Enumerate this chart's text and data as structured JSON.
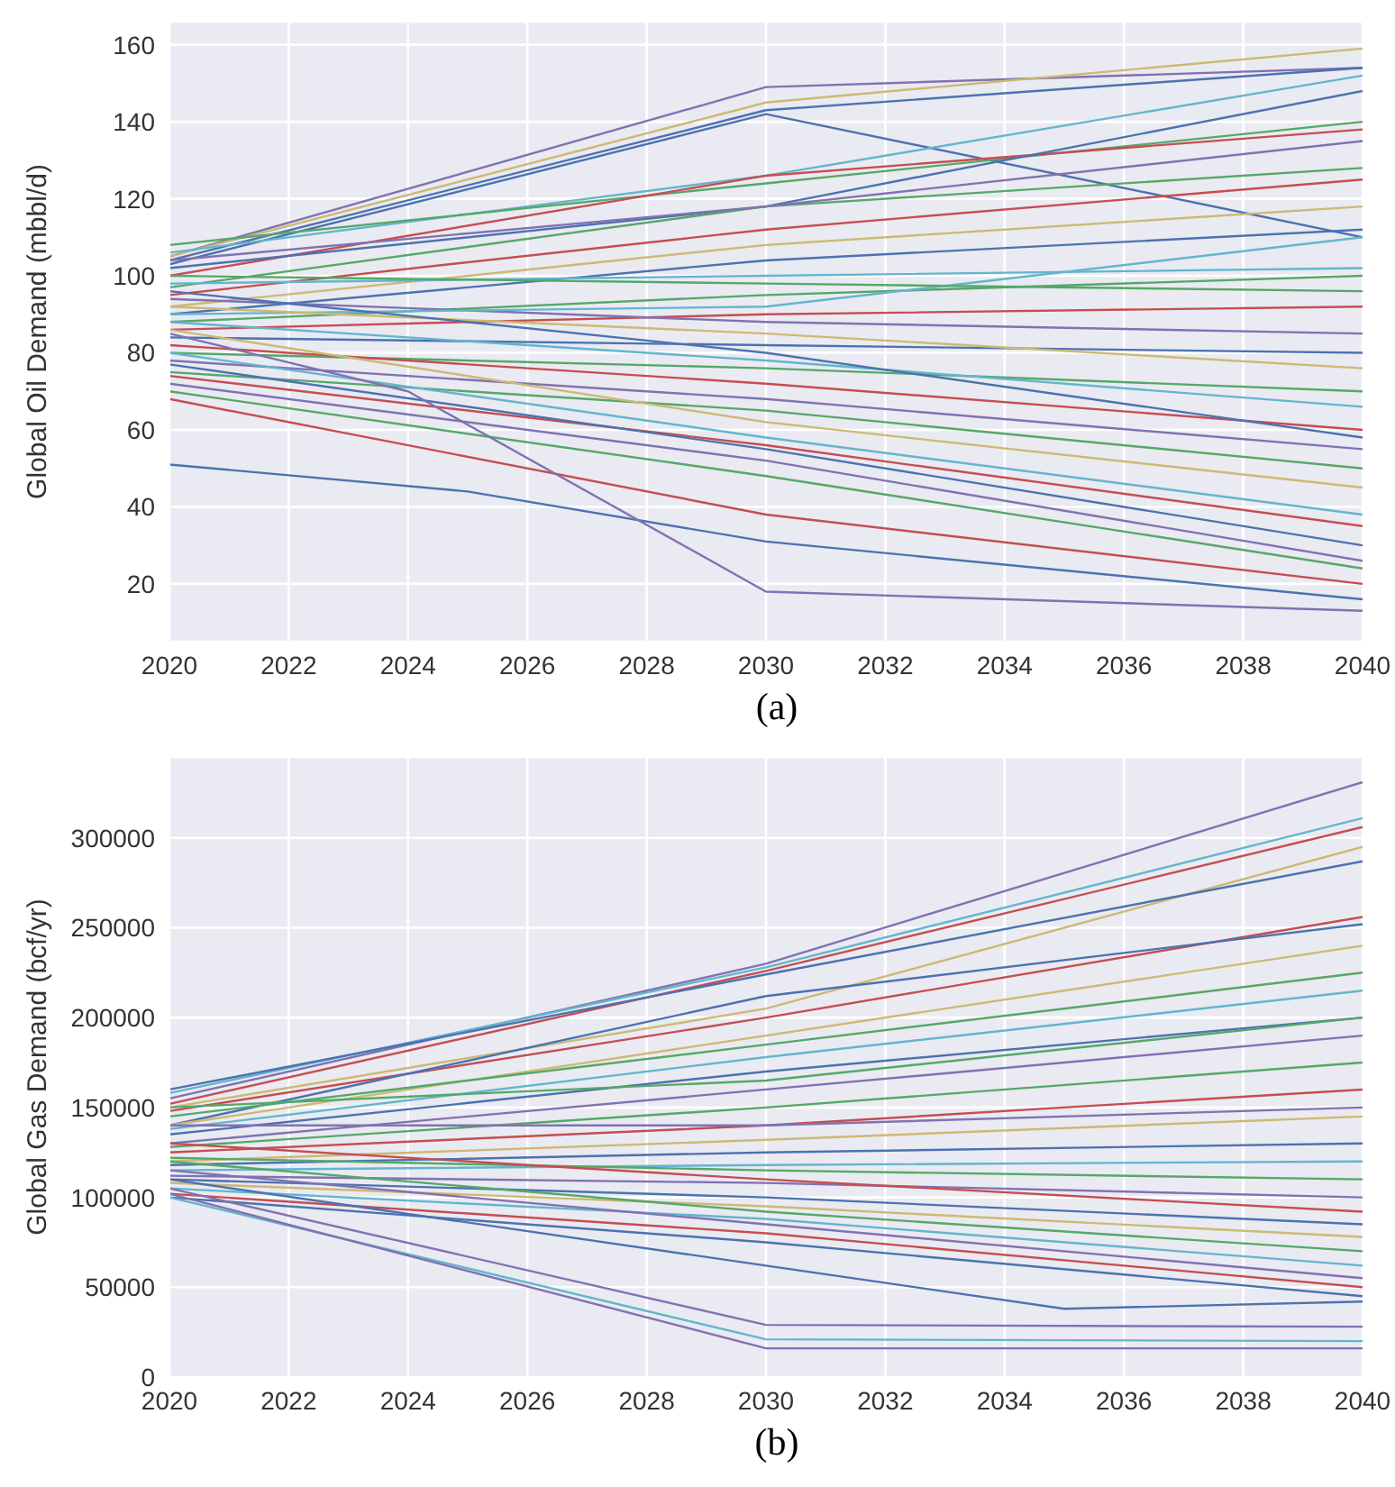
{
  "chart_data": [
    {
      "type": "line",
      "ylabel": "Global Oil Demand (mbbl/d)",
      "annotations": [
        "(a)"
      ],
      "xlim": [
        2020,
        2040
      ],
      "xticks": [
        2020,
        2022,
        2024,
        2026,
        2028,
        2030,
        2032,
        2034,
        2036,
        2038,
        2040
      ],
      "ylim": [
        5,
        166
      ],
      "yticks": [
        20,
        40,
        60,
        80,
        100,
        120,
        140,
        160
      ],
      "grid": true,
      "series": [
        {
          "color": "#8172b2",
          "x": [
            2020,
            2030,
            2040
          ],
          "values": [
            105,
            149,
            154
          ]
        },
        {
          "color": "#ccb974",
          "x": [
            2020,
            2030,
            2040
          ],
          "values": [
            105,
            145,
            159
          ]
        },
        {
          "color": "#4c72b0",
          "x": [
            2020,
            2030,
            2040
          ],
          "values": [
            104,
            143,
            154
          ]
        },
        {
          "color": "#4c72b0",
          "x": [
            2020,
            2030,
            2040
          ],
          "values": [
            103,
            142,
            110
          ]
        },
        {
          "color": "#64b5cd",
          "x": [
            2020,
            2030,
            2040
          ],
          "values": [
            106,
            126,
            152
          ]
        },
        {
          "color": "#55a868",
          "x": [
            2020,
            2030,
            2040
          ],
          "values": [
            108,
            124,
            140
          ]
        },
        {
          "color": "#c44e52",
          "x": [
            2020,
            2030,
            2040
          ],
          "values": [
            100,
            126,
            138
          ]
        },
        {
          "color": "#4c72b0",
          "x": [
            2020,
            2030,
            2040
          ],
          "values": [
            102,
            118,
            148
          ]
        },
        {
          "color": "#55a868",
          "x": [
            2020,
            2030,
            2040
          ],
          "values": [
            97,
            118,
            128
          ]
        },
        {
          "color": "#c44e52",
          "x": [
            2020,
            2030,
            2040
          ],
          "values": [
            95,
            112,
            125
          ]
        },
        {
          "color": "#ccb974",
          "x": [
            2020,
            2030,
            2040
          ],
          "values": [
            92,
            108,
            118
          ]
        },
        {
          "color": "#8172b2",
          "x": [
            2020,
            2030,
            2040
          ],
          "values": [
            104,
            118,
            135
          ]
        },
        {
          "color": "#4c72b0",
          "x": [
            2020,
            2030,
            2040
          ],
          "values": [
            90,
            104,
            112
          ]
        },
        {
          "color": "#64b5cd",
          "x": [
            2020,
            2030,
            2040
          ],
          "values": [
            98,
            100,
            102
          ]
        },
        {
          "color": "#55a868",
          "x": [
            2020,
            2030,
            2040
          ],
          "values": [
            88,
            95,
            100
          ]
        },
        {
          "color": "#c44e52",
          "x": [
            2020,
            2030,
            2040
          ],
          "values": [
            86,
            90,
            92
          ]
        },
        {
          "color": "#8172b2",
          "x": [
            2020,
            2030,
            2040
          ],
          "values": [
            94,
            88,
            85
          ]
        },
        {
          "color": "#64b5cd",
          "x": [
            2020,
            2030,
            2040
          ],
          "values": [
            90,
            92,
            110
          ]
        },
        {
          "color": "#55a868",
          "x": [
            2020,
            2030,
            2040
          ],
          "values": [
            100,
            98,
            96
          ]
        },
        {
          "color": "#4c72b0",
          "x": [
            2020,
            2030,
            2040
          ],
          "values": [
            84,
            82,
            80
          ]
        },
        {
          "color": "#ccb974",
          "x": [
            2020,
            2030,
            2040
          ],
          "values": [
            92,
            85,
            76
          ]
        },
        {
          "color": "#55a868",
          "x": [
            2020,
            2030,
            2040
          ],
          "values": [
            80,
            76,
            70
          ]
        },
        {
          "color": "#64b5cd",
          "x": [
            2020,
            2030,
            2040
          ],
          "values": [
            88,
            78,
            66
          ]
        },
        {
          "color": "#c44e52",
          "x": [
            2020,
            2030,
            2040
          ],
          "values": [
            82,
            72,
            60
          ]
        },
        {
          "color": "#4c72b0",
          "x": [
            2020,
            2030,
            2040
          ],
          "values": [
            96,
            80,
            58
          ]
        },
        {
          "color": "#8172b2",
          "x": [
            2020,
            2030,
            2040
          ],
          "values": [
            78,
            68,
            55
          ]
        },
        {
          "color": "#55a868",
          "x": [
            2020,
            2030,
            2040
          ],
          "values": [
            75,
            65,
            50
          ]
        },
        {
          "color": "#ccb974",
          "x": [
            2020,
            2030,
            2040
          ],
          "values": [
            86,
            62,
            45
          ]
        },
        {
          "color": "#64b5cd",
          "x": [
            2020,
            2030,
            2040
          ],
          "values": [
            80,
            58,
            38
          ]
        },
        {
          "color": "#c44e52",
          "x": [
            2020,
            2030,
            2040
          ],
          "values": [
            74,
            56,
            35
          ]
        },
        {
          "color": "#4c72b0",
          "x": [
            2020,
            2030,
            2040
          ],
          "values": [
            77,
            55,
            30
          ]
        },
        {
          "color": "#8172b2",
          "x": [
            2020,
            2030,
            2040
          ],
          "values": [
            72,
            52,
            26
          ]
        },
        {
          "color": "#55a868",
          "x": [
            2020,
            2030,
            2040
          ],
          "values": [
            70,
            48,
            24
          ]
        },
        {
          "color": "#c44e52",
          "x": [
            2020,
            2030,
            2040
          ],
          "values": [
            68,
            38,
            20
          ]
        },
        {
          "color": "#4c72b0",
          "x": [
            2020,
            2025,
            2030,
            2040
          ],
          "values": [
            51,
            44,
            31,
            16
          ]
        },
        {
          "color": "#8172b2",
          "x": [
            2020,
            2024,
            2030,
            2040
          ],
          "values": [
            85,
            70,
            18,
            13
          ]
        }
      ]
    },
    {
      "type": "line",
      "ylabel": "Global Gas Demand (bcf/yr)",
      "annotations": [
        "(b)"
      ],
      "xlim": [
        2020,
        2040
      ],
      "xticks": [
        2020,
        2022,
        2024,
        2026,
        2028,
        2030,
        2032,
        2034,
        2036,
        2038,
        2040
      ],
      "ylim": [
        0,
        345000
      ],
      "yticks": [
        0,
        50000,
        100000,
        150000,
        200000,
        250000,
        300000
      ],
      "grid": true,
      "series": [
        {
          "color": "#8172b2",
          "x": [
            2020,
            2030,
            2040
          ],
          "values": [
            155000,
            230000,
            331000
          ]
        },
        {
          "color": "#64b5cd",
          "x": [
            2020,
            2030,
            2040
          ],
          "values": [
            158000,
            228000,
            311000
          ]
        },
        {
          "color": "#c44e52",
          "x": [
            2020,
            2030,
            2040
          ],
          "values": [
            152000,
            226000,
            306000
          ]
        },
        {
          "color": "#ccb974",
          "x": [
            2020,
            2030,
            2040
          ],
          "values": [
            150000,
            205000,
            295000
          ]
        },
        {
          "color": "#4c72b0",
          "x": [
            2020,
            2030,
            2040
          ],
          "values": [
            160000,
            224000,
            287000
          ]
        },
        {
          "color": "#c44e52",
          "x": [
            2020,
            2030,
            2040
          ],
          "values": [
            148000,
            200000,
            256000
          ]
        },
        {
          "color": "#4c72b0",
          "x": [
            2020,
            2030,
            2040
          ],
          "values": [
            140000,
            212000,
            252000
          ]
        },
        {
          "color": "#ccb974",
          "x": [
            2020,
            2030,
            2040
          ],
          "values": [
            140000,
            190000,
            240000
          ]
        },
        {
          "color": "#55a868",
          "x": [
            2020,
            2030,
            2040
          ],
          "values": [
            145000,
            185000,
            225000
          ]
        },
        {
          "color": "#64b5cd",
          "x": [
            2020,
            2030,
            2040
          ],
          "values": [
            138000,
            178000,
            215000
          ]
        },
        {
          "color": "#4c72b0",
          "x": [
            2020,
            2030,
            2040
          ],
          "values": [
            135000,
            170000,
            200000
          ]
        },
        {
          "color": "#8172b2",
          "x": [
            2020,
            2030,
            2040
          ],
          "values": [
            130000,
            160000,
            190000
          ]
        },
        {
          "color": "#55a868",
          "x": [
            2020,
            2030,
            2040
          ],
          "values": [
            150000,
            165000,
            200000
          ]
        },
        {
          "color": "#55a868",
          "x": [
            2020,
            2030,
            2040
          ],
          "values": [
            128000,
            150000,
            175000
          ]
        },
        {
          "color": "#c44e52",
          "x": [
            2020,
            2030,
            2040
          ],
          "values": [
            125000,
            140000,
            160000
          ]
        },
        {
          "color": "#8172b2",
          "x": [
            2020,
            2030,
            2040
          ],
          "values": [
            140000,
            140000,
            150000
          ]
        },
        {
          "color": "#ccb974",
          "x": [
            2020,
            2030,
            2040
          ],
          "values": [
            120000,
            132000,
            145000
          ]
        },
        {
          "color": "#4c72b0",
          "x": [
            2020,
            2030,
            2040
          ],
          "values": [
            118000,
            125000,
            130000
          ]
        },
        {
          "color": "#64b5cd",
          "x": [
            2020,
            2030,
            2040
          ],
          "values": [
            115000,
            118000,
            120000
          ]
        },
        {
          "color": "#55a868",
          "x": [
            2020,
            2030,
            2040
          ],
          "values": [
            122000,
            115000,
            110000
          ]
        },
        {
          "color": "#8172b2",
          "x": [
            2020,
            2030,
            2040
          ],
          "values": [
            112000,
            108000,
            100000
          ]
        },
        {
          "color": "#c44e52",
          "x": [
            2020,
            2030,
            2040
          ],
          "values": [
            130000,
            110000,
            92000
          ]
        },
        {
          "color": "#4c72b0",
          "x": [
            2020,
            2030,
            2040
          ],
          "values": [
            110000,
            100000,
            85000
          ]
        },
        {
          "color": "#ccb974",
          "x": [
            2020,
            2030,
            2040
          ],
          "values": [
            108000,
            95000,
            78000
          ]
        },
        {
          "color": "#55a868",
          "x": [
            2020,
            2030,
            2040
          ],
          "values": [
            120000,
            92000,
            70000
          ]
        },
        {
          "color": "#64b5cd",
          "x": [
            2020,
            2030,
            2040
          ],
          "values": [
            105000,
            88000,
            62000
          ]
        },
        {
          "color": "#8172b2",
          "x": [
            2020,
            2030,
            2040
          ],
          "values": [
            115000,
            85000,
            55000
          ]
        },
        {
          "color": "#c44e52",
          "x": [
            2020,
            2030,
            2040
          ],
          "values": [
            102000,
            80000,
            50000
          ]
        },
        {
          "color": "#4c72b0",
          "x": [
            2020,
            2030,
            2040
          ],
          "values": [
            100000,
            75000,
            45000
          ]
        },
        {
          "color": "#4c72b0",
          "x": [
            2020,
            2030,
            2035,
            2040
          ],
          "values": [
            110000,
            62000,
            38000,
            42000
          ]
        },
        {
          "color": "#8172b2",
          "x": [
            2020,
            2030,
            2040
          ],
          "values": [
            105000,
            29000,
            28000
          ]
        },
        {
          "color": "#64b5cd",
          "x": [
            2020,
            2030,
            2040
          ],
          "values": [
            100000,
            21000,
            20000
          ]
        },
        {
          "color": "#8172b2",
          "x": [
            2020,
            2030,
            2040
          ],
          "values": [
            102000,
            16000,
            16000
          ]
        }
      ]
    }
  ]
}
